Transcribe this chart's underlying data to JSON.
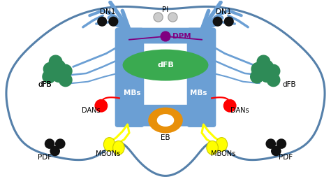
{
  "brain_outline_color": "#5580aa",
  "brain_fill_color": "#ffffff",
  "mb_color": "#6b9fd4",
  "mb_dark": "#5580aa",
  "dfb_color": "#3aaa50",
  "eb_color": "#e8900a",
  "dpm_color": "#800080",
  "dan_color": "#ff0000",
  "mbon_color": "#ffff00",
  "mbon_edge": "#cccc00",
  "dn1_color": "#111111",
  "pdf_color": "#111111",
  "pi_color": "#cccccc",
  "pi_edge": "#999999",
  "dfb_neuron_color": "#2e8b57",
  "branch_color": "#5580aa",
  "yellow_line": "#ffff00",
  "labels": {
    "DN1_left": "DN1",
    "DN1_right": "DN1",
    "PI": "PI",
    "DPM": "DPM",
    "dFB": "dFB",
    "MBs_left": "MBs",
    "MBs_right": "MBs",
    "DANs_left": "DANs",
    "DANs_right": "DANs",
    "MBONs_left": "MBONs",
    "MBONs_right": "MBONs",
    "PDF_left": "PDF",
    "PDF_right": "PDF",
    "EB": "EB"
  },
  "fs": 7.5
}
